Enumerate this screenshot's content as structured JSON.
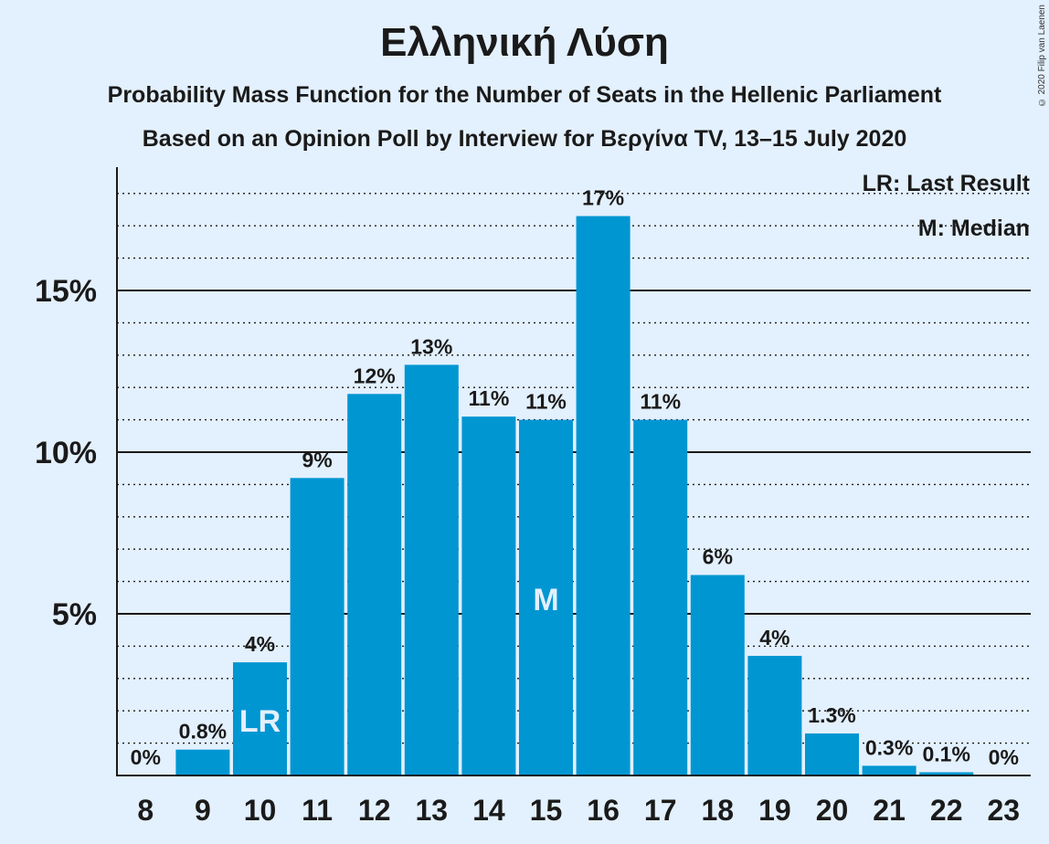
{
  "title": "Ελληνική Λύση",
  "subtitle1": "Probability Mass Function for the Number of Seats in the Hellenic Parliament",
  "subtitle2": "Based on an Opinion Poll by Interview for Βεργίνα TV, 13–15 July 2020",
  "copyright": "© 2020 Filip van Laenen",
  "legend": {
    "lr": "LR: Last Result",
    "m": "M: Median"
  },
  "colors": {
    "bar": "#0096d2",
    "background": "#e3f0fd"
  },
  "chart_data": {
    "type": "bar",
    "categories": [
      "8",
      "9",
      "10",
      "11",
      "12",
      "13",
      "14",
      "15",
      "16",
      "17",
      "18",
      "19",
      "20",
      "21",
      "22",
      "23"
    ],
    "values": [
      0,
      0.8,
      3.5,
      9.2,
      11.8,
      12.7,
      11.1,
      11.0,
      17.3,
      11.0,
      6.2,
      3.7,
      1.3,
      0.3,
      0.1,
      0
    ],
    "labels": [
      "0%",
      "0.8%",
      "4%",
      "9%",
      "12%",
      "13%",
      "11%",
      "11%",
      "17%",
      "11%",
      "6%",
      "4%",
      "1.3%",
      "0.3%",
      "0.1%",
      "0%"
    ],
    "yticks": [
      {
        "value": 5,
        "label": "5%"
      },
      {
        "value": 10,
        "label": "10%"
      },
      {
        "value": 15,
        "label": "15%"
      }
    ],
    "ylim": [
      0,
      18.9
    ],
    "last_result": {
      "category": "10",
      "marker": "LR"
    },
    "median": {
      "category": "15",
      "marker": "M"
    },
    "legend_position": "top-right"
  }
}
